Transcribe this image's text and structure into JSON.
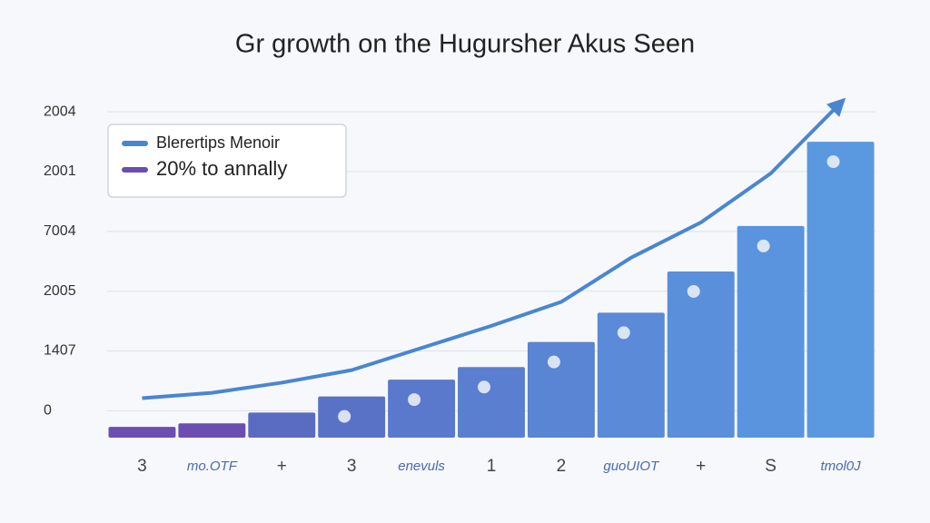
{
  "chart_data": {
    "type": "bar-line",
    "title": "Gr growth on the Hugursher Akus Seen",
    "categories": [
      "3",
      "mo.OTF",
      "+",
      "3",
      "enevuls",
      "1",
      "2",
      "guoUIOT",
      "+",
      "S",
      "tmol0J"
    ],
    "ylim": [
      -0.45,
      5.2
    ],
    "yticks": [
      {
        "value": 0,
        "label": "0"
      },
      {
        "value": 1,
        "label": "1407"
      },
      {
        "value": 2,
        "label": "2005"
      },
      {
        "value": 3,
        "label": "7004"
      },
      {
        "value": 4,
        "label": "2001"
      },
      {
        "value": 5,
        "label": "2004"
      }
    ],
    "grid": true,
    "legend": "upper left",
    "series": [
      {
        "name": "20% to annally",
        "kind": "bar",
        "color": "#6a4fb0",
        "colors": [
          "#6a4fb0",
          "#6a4fb0",
          "#5a6cc0",
          "#5a72c6",
          "#5a78cc",
          "#5a7ed0",
          "#5a84d4",
          "#5a8ad8",
          "#5a8fdb",
          "#5a94de",
          "#5a99e0"
        ],
        "values": [
          -0.27,
          -0.21,
          -0.03,
          0.24,
          0.52,
          0.73,
          1.15,
          1.64,
          2.33,
          3.09,
          4.5
        ]
      },
      {
        "name": "Blerertips Menoir",
        "kind": "line",
        "color": "#4a86d0",
        "values": [
          0.21,
          0.3,
          0.47,
          0.68,
          1.05,
          1.42,
          1.82,
          2.56,
          3.15,
          3.97,
          5.15
        ]
      }
    ]
  }
}
